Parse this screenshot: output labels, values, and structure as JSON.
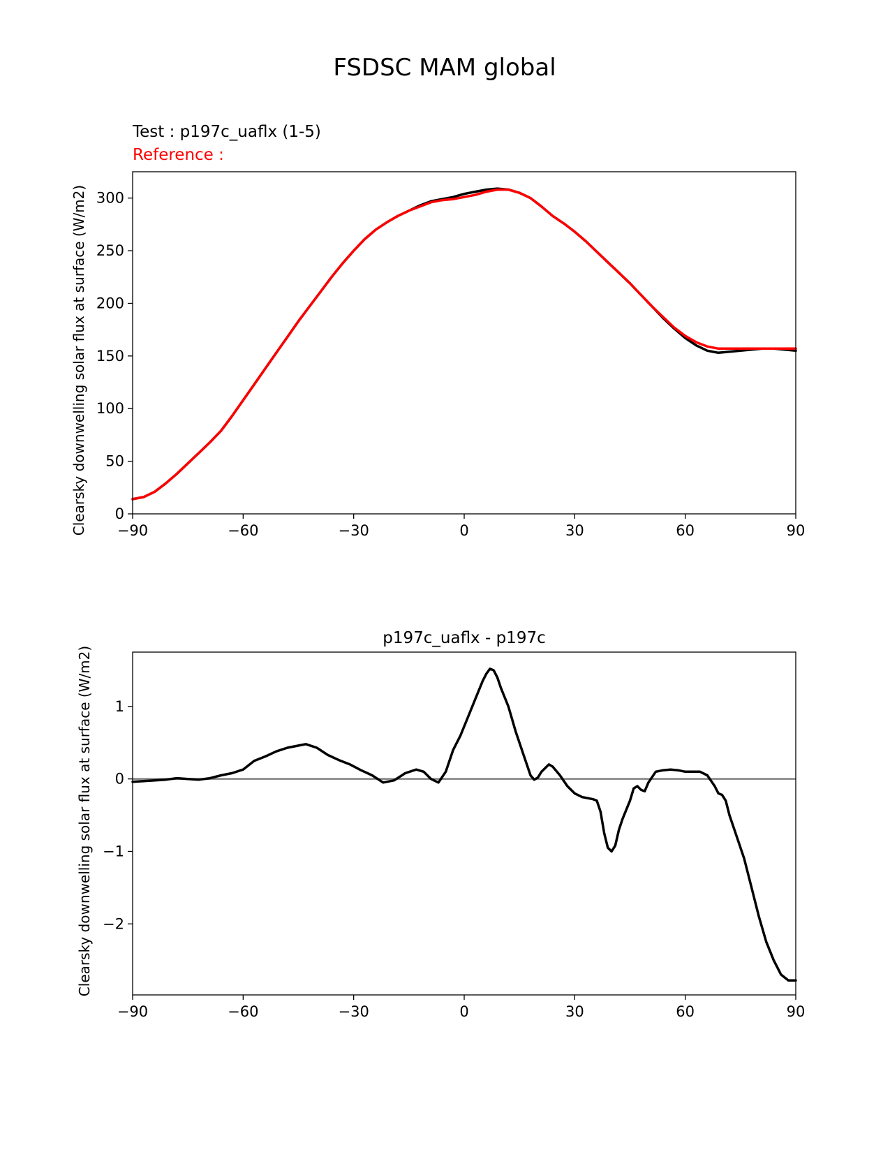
{
  "figure_title": "FSDSC MAM global",
  "colors": {
    "test": "#000000",
    "reference": "#ff0000",
    "zero_line": "#808080",
    "axes": "#000000"
  },
  "chart_data": [
    {
      "type": "line",
      "test_label": "Test : p197c_uaflx (1-5)",
      "reference_label": "Reference :",
      "xlabel": "",
      "ylabel": "Clearsky downwelling solar flux at surface (W/m2)",
      "xlim": [
        -90,
        90
      ],
      "ylim": [
        0,
        325
      ],
      "xticks": [
        -90,
        -60,
        -30,
        0,
        30,
        60,
        90
      ],
      "xtick_labels": [
        "−90",
        "−60",
        "−30",
        "0",
        "30",
        "60",
        "90"
      ],
      "yticks": [
        0,
        50,
        100,
        150,
        200,
        250,
        300
      ],
      "ytick_labels": [
        "0",
        "50",
        "100",
        "150",
        "200",
        "250",
        "300"
      ],
      "x": [
        -90,
        -87,
        -84,
        -81,
        -78,
        -75,
        -72,
        -69,
        -66,
        -63,
        -60,
        -57,
        -54,
        -51,
        -48,
        -45,
        -42,
        -39,
        -36,
        -33,
        -30,
        -27,
        -24,
        -21,
        -18,
        -15,
        -12,
        -9,
        -6,
        -3,
        0,
        3,
        6,
        9,
        12,
        15,
        18,
        21,
        24,
        27,
        30,
        33,
        36,
        39,
        42,
        45,
        48,
        51,
        54,
        57,
        60,
        63,
        66,
        69,
        72,
        75,
        78,
        81,
        84,
        87,
        90
      ],
      "series": [
        {
          "name": "test",
          "color": "#000000",
          "values": [
            14,
            16,
            21,
            29,
            38,
            48,
            58,
            68,
            79,
            93,
            108,
            123,
            138,
            153,
            168,
            183,
            197,
            211,
            225,
            238,
            250,
            261,
            270,
            277,
            283,
            288,
            293,
            297,
            299,
            301,
            304,
            306,
            308,
            309,
            308,
            305,
            300,
            292,
            283,
            276,
            268,
            259,
            249,
            239,
            229,
            219,
            208,
            197,
            186,
            176,
            167,
            160,
            155,
            153,
            154,
            155,
            156,
            157,
            157,
            156,
            155
          ]
        },
        {
          "name": "reference",
          "color": "#ff0000",
          "values": [
            14,
            16,
            21,
            29,
            38,
            48,
            58,
            68,
            79,
            93,
            108,
            123,
            138,
            153,
            168,
            183,
            197,
            211,
            225,
            238,
            250,
            261,
            270,
            277,
            283,
            288,
            292,
            296,
            298,
            299,
            301,
            303,
            306,
            308,
            308,
            305,
            300,
            292,
            283,
            276,
            268,
            259,
            249,
            239,
            229,
            219,
            208,
            197,
            187,
            177,
            169,
            163,
            159,
            157,
            157,
            157,
            157,
            157,
            157,
            157,
            157
          ]
        }
      ]
    },
    {
      "type": "line",
      "title": "p197c_uaflx - p197c",
      "xlabel": "",
      "ylabel": "Clearsky downwelling solar flux at surface (W/m2)",
      "xlim": [
        -90,
        90
      ],
      "ylim": [
        -2.98,
        1.75
      ],
      "xticks": [
        -90,
        -60,
        -30,
        0,
        30,
        60,
        90
      ],
      "xtick_labels": [
        "−90",
        "−60",
        "−30",
        "0",
        "30",
        "60",
        "90"
      ],
      "yticks": [
        -2,
        -1,
        0,
        1
      ],
      "ytick_labels": [
        "−2",
        "−1",
        "0",
        "1"
      ],
      "zero_line": 0,
      "x": [
        -90,
        -87,
        -84,
        -81,
        -78,
        -75,
        -72,
        -69,
        -66,
        -63,
        -60,
        -57,
        -54,
        -51,
        -48,
        -45,
        -43,
        -40,
        -37,
        -34,
        -31,
        -28,
        -25,
        -22,
        -19,
        -16,
        -13,
        -11,
        -9,
        -7,
        -5,
        -3,
        -1,
        1,
        3,
        5,
        6,
        7,
        8,
        9,
        10,
        12,
        14,
        16,
        18,
        19,
        20,
        21,
        23,
        24,
        26,
        28,
        30,
        32,
        34,
        35,
        36,
        37,
        38,
        39,
        40,
        41,
        42,
        43,
        45,
        46,
        47,
        48,
        49,
        50,
        52,
        54,
        56,
        58,
        60,
        62,
        64,
        66,
        68,
        69,
        70,
        71,
        72,
        74,
        76,
        78,
        80,
        82,
        84,
        86,
        88,
        90
      ],
      "series": [
        {
          "name": "difference",
          "color": "#000000",
          "values": [
            -0.04,
            -0.03,
            -0.02,
            -0.01,
            0.01,
            0.0,
            -0.01,
            0.01,
            0.05,
            0.08,
            0.13,
            0.25,
            0.31,
            0.38,
            0.43,
            0.46,
            0.48,
            0.43,
            0.33,
            0.26,
            0.2,
            0.12,
            0.05,
            -0.05,
            -0.02,
            0.08,
            0.13,
            0.1,
            0.0,
            -0.05,
            0.1,
            0.4,
            0.6,
            0.85,
            1.1,
            1.35,
            1.45,
            1.52,
            1.5,
            1.4,
            1.25,
            1.0,
            0.65,
            0.35,
            0.05,
            -0.01,
            0.02,
            0.1,
            0.2,
            0.17,
            0.05,
            -0.1,
            -0.2,
            -0.25,
            -0.27,
            -0.28,
            -0.3,
            -0.45,
            -0.75,
            -0.95,
            -1.0,
            -0.92,
            -0.7,
            -0.55,
            -0.3,
            -0.13,
            -0.1,
            -0.15,
            -0.17,
            -0.05,
            0.1,
            0.12,
            0.13,
            0.12,
            0.1,
            0.1,
            0.1,
            0.05,
            -0.1,
            -0.2,
            -0.22,
            -0.3,
            -0.5,
            -0.8,
            -1.1,
            -1.5,
            -1.9,
            -2.25,
            -2.5,
            -2.7,
            -2.78,
            -2.78
          ]
        }
      ]
    }
  ]
}
